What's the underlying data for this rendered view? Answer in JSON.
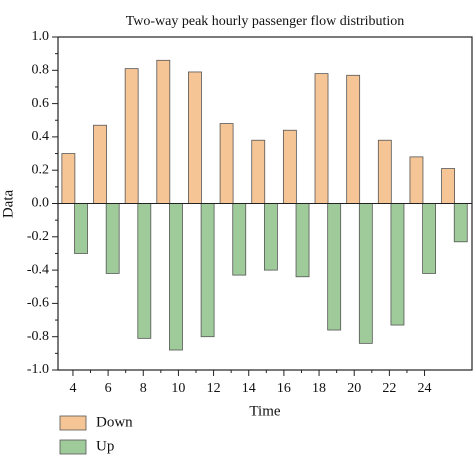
{
  "chart_data": {
    "type": "bar",
    "title": "Two-way peak hourly passenger flow distribution",
    "x_label": "Time",
    "y_label": "Data",
    "x": [
      4.1,
      5.9,
      7.7,
      9.5,
      11.3,
      13.1,
      14.9,
      16.7,
      18.5,
      20.3,
      22.1,
      23.9,
      25.7
    ],
    "series": [
      {
        "name": "Down",
        "color": "#f6c596",
        "values": [
          0.3,
          0.47,
          0.81,
          0.86,
          0.79,
          0.48,
          0.38,
          0.44,
          0.78,
          0.77,
          0.38,
          0.28,
          0.21
        ]
      },
      {
        "name": "Up",
        "color": "#9fcb9b",
        "values": [
          -0.3,
          -0.42,
          -0.81,
          -0.88,
          -0.8,
          -0.43,
          -0.4,
          -0.44,
          -0.76,
          -0.84,
          -0.73,
          -0.42,
          -0.23
        ]
      }
    ],
    "xlim": [
      3.15,
      26.7
    ],
    "xticks": [
      4,
      6,
      8,
      10,
      12,
      14,
      16,
      18,
      20,
      22,
      24
    ],
    "ylim": [
      -1.0,
      1.0
    ],
    "yticks": [
      {
        "value": -1.0,
        "label": "-1.0"
      },
      {
        "value": -0.8,
        "label": "-0.8"
      },
      {
        "value": -0.6,
        "label": "-0.6"
      },
      {
        "value": -0.4,
        "label": "-0.4"
      },
      {
        "value": -0.2,
        "label": "-0.2"
      },
      {
        "value": 0,
        "label": "0.0"
      },
      {
        "value": 0.2,
        "label": "0.2"
      },
      {
        "value": 0.4,
        "label": "0.4"
      },
      {
        "value": 0.6,
        "label": "0.6"
      },
      {
        "value": 0.8,
        "label": "0.8"
      },
      {
        "value": 1.0,
        "label": "1.0"
      }
    ],
    "grid": false,
    "legend": "bottom-left"
  }
}
